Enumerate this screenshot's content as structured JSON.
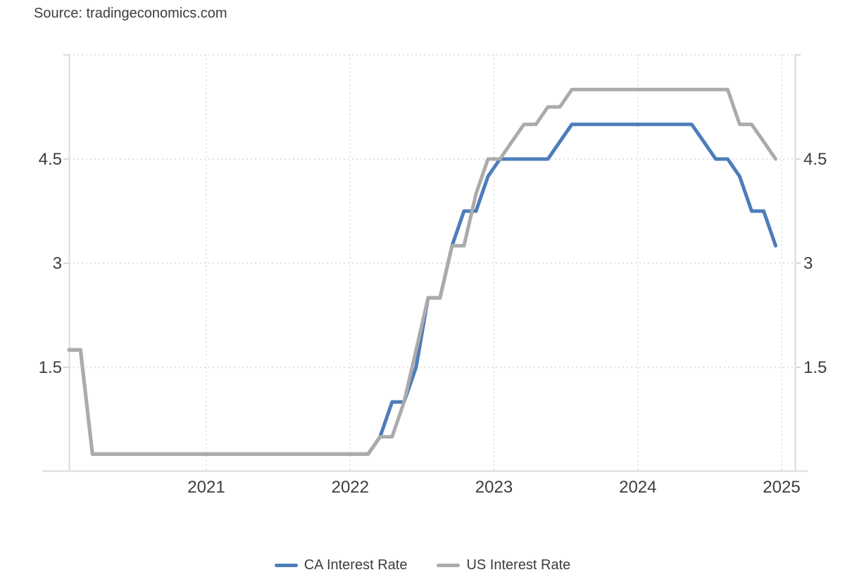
{
  "source_label": "Source: tradingeconomics.com",
  "chart_data": {
    "type": "line",
    "frequency": "monthly",
    "x_monthly_start": "2020-01",
    "x_monthly_end": "2024-12",
    "x_tick_labels": [
      "2021",
      "2022",
      "2023",
      "2024",
      "2025"
    ],
    "y_tick_labels": [
      "4.5",
      "3",
      "1.5"
    ],
    "y_gridline_values": [
      1.5,
      3,
      4.5,
      6
    ],
    "ylim": [
      0,
      6
    ],
    "xlim_years": [
      2020.04,
      2025.09
    ],
    "grid": "dotted",
    "legend_position": "bottom",
    "series": [
      {
        "name": "CA Interest Rate",
        "color": "#4d7cba",
        "monthly_values": [
          1.75,
          1.75,
          0.25,
          0.25,
          0.25,
          0.25,
          0.25,
          0.25,
          0.25,
          0.25,
          0.25,
          0.25,
          0.25,
          0.25,
          0.25,
          0.25,
          0.25,
          0.25,
          0.25,
          0.25,
          0.25,
          0.25,
          0.25,
          0.25,
          0.25,
          0.25,
          0.5,
          1.0,
          1.0,
          1.5,
          2.5,
          2.5,
          3.25,
          3.75,
          3.75,
          4.25,
          4.5,
          4.5,
          4.5,
          4.5,
          4.5,
          4.75,
          5.0,
          5.0,
          5.0,
          5.0,
          5.0,
          5.0,
          5.0,
          5.0,
          5.0,
          5.0,
          5.0,
          4.75,
          4.5,
          4.5,
          4.25,
          3.75,
          3.75,
          3.25
        ]
      },
      {
        "name": "US Interest Rate",
        "color": "#ababab",
        "monthly_values": [
          1.75,
          1.75,
          0.25,
          0.25,
          0.25,
          0.25,
          0.25,
          0.25,
          0.25,
          0.25,
          0.25,
          0.25,
          0.25,
          0.25,
          0.25,
          0.25,
          0.25,
          0.25,
          0.25,
          0.25,
          0.25,
          0.25,
          0.25,
          0.25,
          0.25,
          0.25,
          0.5,
          0.5,
          1.0,
          1.75,
          2.5,
          2.5,
          3.25,
          3.25,
          4.0,
          4.5,
          4.5,
          4.75,
          5.0,
          5.0,
          5.25,
          5.25,
          5.5,
          5.5,
          5.5,
          5.5,
          5.5,
          5.5,
          5.5,
          5.5,
          5.5,
          5.5,
          5.5,
          5.5,
          5.5,
          5.5,
          5.0,
          5.0,
          4.75,
          4.5
        ]
      }
    ]
  }
}
